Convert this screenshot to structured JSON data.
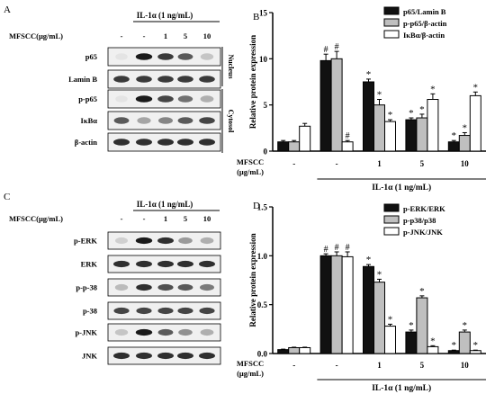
{
  "panels": {
    "A": {
      "letter": "A",
      "treatment_label": "IL-1α (1 ng/mL)",
      "dose_label": "MFSCC(μg/mL)",
      "doses": [
        "-",
        "-",
        "1",
        "5",
        "10"
      ],
      "bands": [
        "p65",
        "Lamin B",
        "p-p65",
        "IκBα",
        "β-actin"
      ],
      "section_labels": [
        "Nucleus",
        "Cytosol"
      ]
    },
    "C": {
      "letter": "C",
      "treatment_label": "IL-1α (1 ng/mL)",
      "dose_label": "MFSCC(μg/mL)",
      "doses": [
        "-",
        "-",
        "1",
        "5",
        "10"
      ],
      "bands": [
        "p-ERK",
        "ERK",
        "p-p-38",
        "p-38",
        "p-JNK",
        "JNK"
      ]
    }
  },
  "colors": {
    "series_black": "#111111",
    "series_gray": "#bfbfbf",
    "series_white": "#ffffff",
    "band": "#1a1a1a",
    "blot_bg": "#f0f0f0"
  },
  "chart_data": [
    {
      "panel": "B",
      "type": "bar",
      "ylabel": "Relative protein expression",
      "ylim": [
        0,
        15
      ],
      "yticks": [
        0,
        5,
        10,
        15
      ],
      "categories": [
        "-",
        "-",
        "1",
        "5",
        "10"
      ],
      "x_label_line1": "MFSCC",
      "x_label_line2": "(μg/mL)",
      "treatment_label": "IL-1α (1 ng/mL)",
      "legend_position": "top-right",
      "series": [
        {
          "name": "p65/Lamin B",
          "color": "#111111",
          "values": [
            1.0,
            9.8,
            7.5,
            3.4,
            1.0
          ],
          "errors": [
            0.15,
            0.7,
            0.3,
            0.2,
            0.15
          ],
          "marks": [
            "",
            "#",
            "*",
            "*",
            "*"
          ]
        },
        {
          "name": "p-p65/β-actin",
          "color": "#bfbfbf",
          "values": [
            1.0,
            10.0,
            5.0,
            3.6,
            1.7
          ],
          "errors": [
            0.15,
            0.8,
            0.6,
            0.4,
            0.3
          ],
          "marks": [
            "",
            "#",
            "*",
            "*",
            "*"
          ]
        },
        {
          "name": "IκBα/β-actin",
          "color": "#ffffff",
          "values": [
            2.7,
            1.0,
            3.2,
            5.6,
            6.0
          ],
          "errors": [
            0.3,
            0.15,
            0.2,
            0.6,
            0.4
          ],
          "marks": [
            "",
            "#",
            "*",
            "*",
            "*"
          ]
        }
      ]
    },
    {
      "panel": "D",
      "type": "bar",
      "ylabel": "Relative protein expression",
      "ylim": [
        0,
        1.5
      ],
      "yticks": [
        0.0,
        0.5,
        1.0,
        1.5
      ],
      "categories": [
        "-",
        "-",
        "1",
        "5",
        "10"
      ],
      "x_label_line1": "MFSCC",
      "x_label_line2": "(μg/mL)",
      "treatment_label": "IL-1α (1 ng/mL)",
      "legend_position": "top-right",
      "series": [
        {
          "name": "p-ERK/ERK",
          "color": "#111111",
          "values": [
            0.04,
            1.0,
            0.89,
            0.22,
            0.03
          ],
          "errors": [
            0.005,
            0.02,
            0.02,
            0.02,
            0.005
          ],
          "marks": [
            "",
            "#",
            "*",
            "*",
            "*"
          ]
        },
        {
          "name": "p-p38/p38",
          "color": "#bfbfbf",
          "values": [
            0.06,
            1.0,
            0.73,
            0.57,
            0.22
          ],
          "errors": [
            0.005,
            0.04,
            0.03,
            0.02,
            0.02
          ],
          "marks": [
            "",
            "#",
            "*",
            "*",
            "*"
          ]
        },
        {
          "name": "p-JNK/JNK",
          "color": "#ffffff",
          "values": [
            0.06,
            0.99,
            0.28,
            0.07,
            0.03
          ],
          "errors": [
            0.005,
            0.05,
            0.02,
            0.01,
            0.005
          ],
          "marks": [
            "",
            "#",
            "*",
            "*",
            "*"
          ]
        }
      ]
    }
  ]
}
